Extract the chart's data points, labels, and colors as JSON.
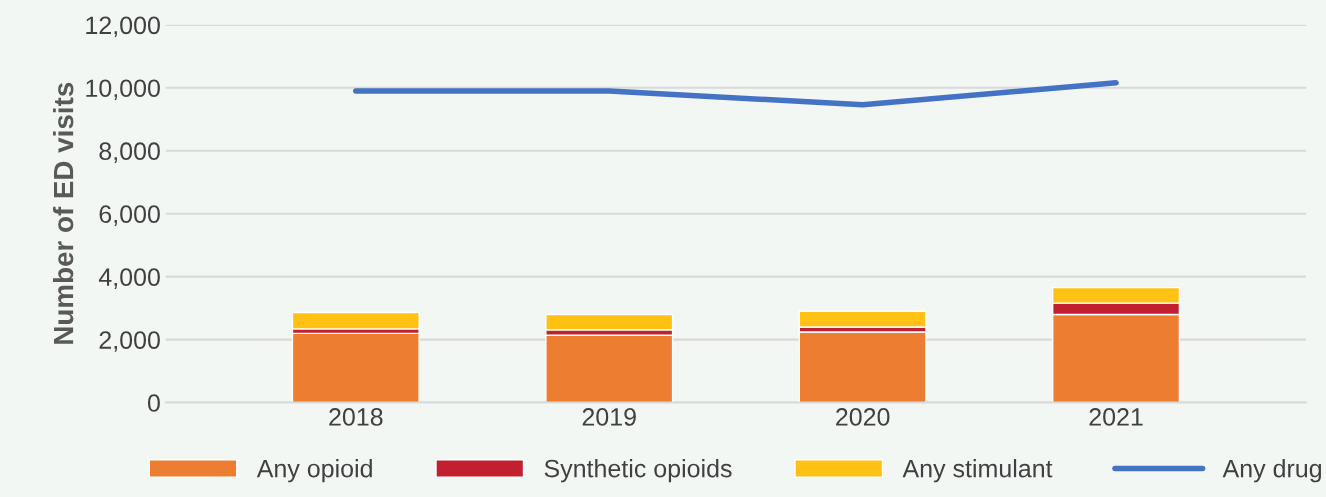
{
  "chart_data": {
    "type": "bar",
    "stacked": true,
    "ylabel": "Number of ED visits",
    "categories": [
      "2018",
      "2019",
      "2020",
      "2021"
    ],
    "series": [
      {
        "name": "Any opioid",
        "color": "#ed7d31",
        "values": [
          2200,
          2140,
          2240,
          2800
        ]
      },
      {
        "name": "Synthetic opioids",
        "color": "#c0202f",
        "values": [
          140,
          170,
          160,
          360
        ]
      },
      {
        "name": "Any stimulant",
        "color": "#ffc113",
        "values": [
          520,
          490,
          500,
          490
        ]
      },
      {
        "name": "Any drug",
        "type": "line",
        "color": "#4472c4",
        "values": [
          9900,
          9900,
          9460,
          10160
        ]
      }
    ],
    "ylim": [
      0,
      12000
    ],
    "yticks": [
      {
        "value": 0,
        "label": "0"
      },
      {
        "value": 2000,
        "label": "2,000"
      },
      {
        "value": 4000,
        "label": "4,000"
      },
      {
        "value": 6000,
        "label": "6,000"
      },
      {
        "value": 8000,
        "label": "8,000"
      },
      {
        "value": 10000,
        "label": "10,000"
      },
      {
        "value": 12000,
        "label": "12,000"
      }
    ],
    "grid": "y",
    "legend": "bottom",
    "marker": "none",
    "line_style": "solid"
  }
}
